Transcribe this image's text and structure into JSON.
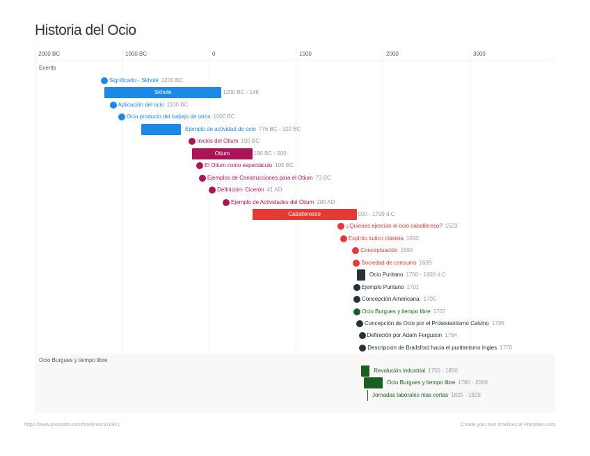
{
  "title": "Historia del Ocio",
  "axis": {
    "ticks": [
      {
        "year": -2000,
        "label": "2000 BC"
      },
      {
        "year": -1000,
        "label": "1000 BC"
      },
      {
        "year": 0,
        "label": "0"
      },
      {
        "year": 1000,
        "label": "1000"
      },
      {
        "year": 2000,
        "label": "2000"
      },
      {
        "year": 3000,
        "label": "3000"
      }
    ]
  },
  "colors": {
    "blue": "#1e88e5",
    "magenta": "#ad1457",
    "red": "#e53935",
    "dark": "#263238",
    "green": "#1b5e20"
  },
  "groups": [
    {
      "name": "Events",
      "events": [
        {
          "label": "Significado - Skholé",
          "date": "1200 BC",
          "start": -1200,
          "color": "blue"
        },
        {
          "label": "Skholé",
          "date": "1200 BC - 146",
          "start": -1200,
          "end": 146,
          "color": "blue",
          "inside": true
        },
        {
          "label": "Aplicación del ocio",
          "date": "1100 BC",
          "start": -1100,
          "color": "blue"
        },
        {
          "label": "Ocio producto del trabajo de otros",
          "date": "1000 BC",
          "start": -1000,
          "color": "blue"
        },
        {
          "label": "Ejemplo de actividad de ocio",
          "date": "776 BC - 320 BC",
          "start": -776,
          "end": -320,
          "color": "blue"
        },
        {
          "label": "Inicios del Otium",
          "date": "190 BC",
          "start": -190,
          "color": "magenta"
        },
        {
          "label": "Otium",
          "date": "190 BC - 500",
          "start": -190,
          "end": 500,
          "color": "magenta",
          "inside": true
        },
        {
          "label": "El Otium como espectáculo",
          "date": "105 BC",
          "start": -105,
          "color": "magenta"
        },
        {
          "label": "Ejemplos de Construcciones para el Otium",
          "date": "73 BC",
          "start": -73,
          "color": "magenta"
        },
        {
          "label": "Definición- Cicerón",
          "date": "41 AD",
          "start": 41,
          "color": "magenta"
        },
        {
          "label": "Ejemplo de Actividades del Otium",
          "date": "200 AD",
          "start": 200,
          "color": "magenta"
        },
        {
          "label": "Caballeresco",
          "date": "500 - 1700 d.C",
          "start": 500,
          "end": 1700,
          "color": "red",
          "inside": true
        },
        {
          "label": "¿Quienes ejercían el ocio caballereso?",
          "date": "1523",
          "start": 1523,
          "color": "red"
        },
        {
          "label": "Espíritu ludico clásista",
          "date": "1550",
          "start": 1550,
          "color": "red"
        },
        {
          "label": "Conceptuación",
          "date": "1690",
          "start": 1690,
          "color": "red"
        },
        {
          "label": "Sociedad de consumo",
          "date": "1699",
          "start": 1699,
          "color": "red"
        },
        {
          "label": "Ocio Puritano",
          "date": "1700 - 1800 d.C",
          "start": 1700,
          "end": 1800,
          "color": "dark"
        },
        {
          "label": "Ejemplo Puritano",
          "date": "1701",
          "start": 1701,
          "color": "dark"
        },
        {
          "label": "Concepción Americana.",
          "date": "1705",
          "start": 1705,
          "color": "dark"
        },
        {
          "label": "Ocio Burgues y tiempo libre",
          "date": "1707",
          "start": 1707,
          "color": "green"
        },
        {
          "label": "Concepción de Ocio por el Protestantismo Calvino",
          "date": "1736",
          "start": 1736,
          "color": "dark"
        },
        {
          "label": "Definición por Adam Ferguson",
          "date": "1764",
          "start": 1764,
          "color": "dark"
        },
        {
          "label": "Descripción de Brailsford hacia el puritanismo Ingles",
          "date": "1770",
          "start": 1770,
          "color": "dark"
        }
      ]
    },
    {
      "name": "Ocio Burgues y tiempo libre",
      "events": [
        {
          "label": "Revolución industrial",
          "date": "1750 - 1850",
          "start": 1750,
          "end": 1850,
          "color": "green"
        },
        {
          "label": "Ocio Burgues y tiempo libre",
          "date": "1780 - 2000",
          "start": 1780,
          "end": 2000,
          "color": "green"
        },
        {
          "label": "Jornadas laborales mas cortas",
          "date": "1825 - 1829",
          "start": 1825,
          "end": 1829,
          "color": "green"
        }
      ]
    }
  ],
  "footer": {
    "left": "https://www.preceden.com/timelines/318941",
    "right": "Create your own timelines at Preceden.com."
  }
}
